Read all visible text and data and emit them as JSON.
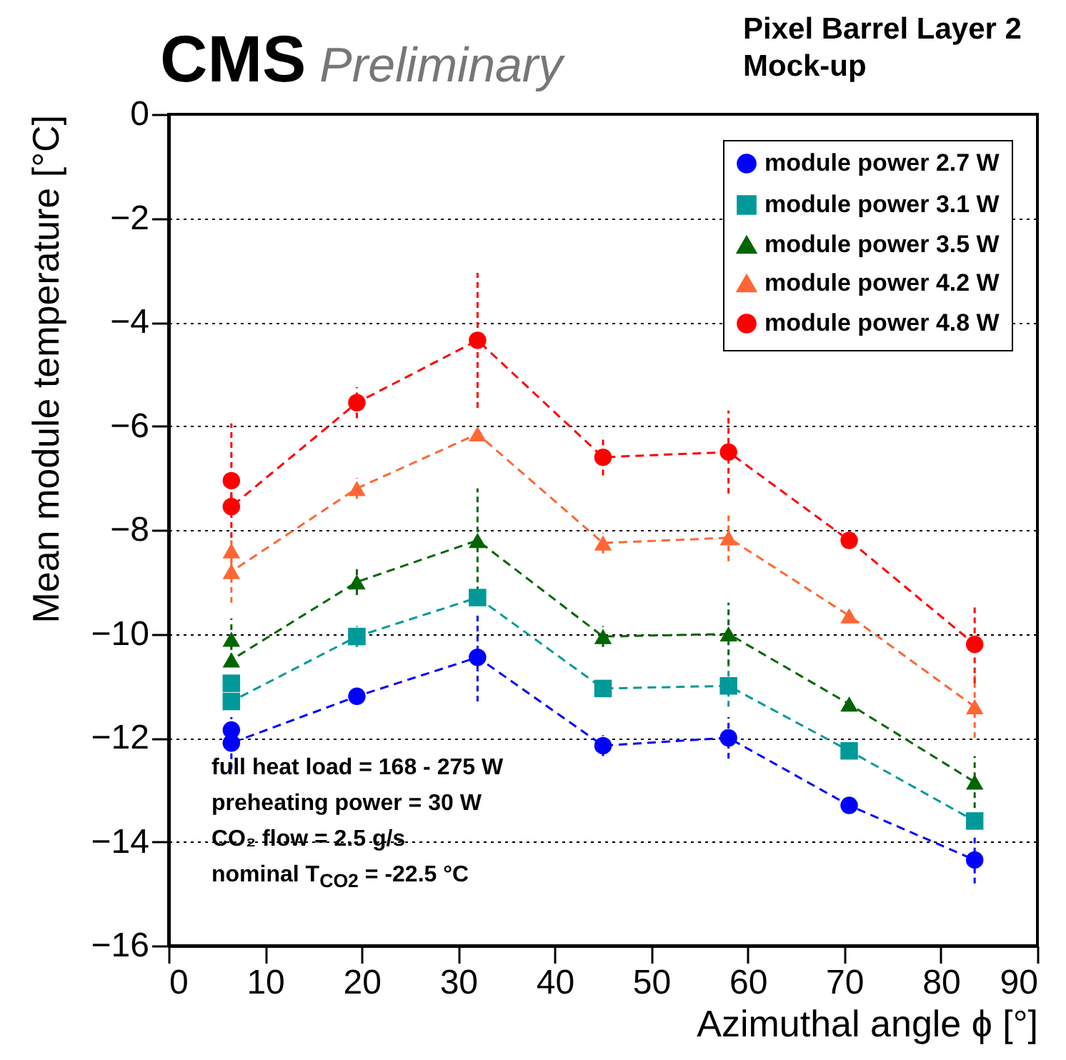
{
  "chart_data": {
    "type": "line",
    "title": "CMS Preliminary",
    "subtitle": "Pixel Barrel Layer 2 Mock-up",
    "xlabel": "Azimuthal angle ϕ [°]",
    "ylabel": "Mean module temperature [°C]",
    "xlim": [
      0,
      90
    ],
    "xticks": [
      0,
      10,
      20,
      30,
      40,
      50,
      60,
      70,
      80,
      90
    ],
    "ylim": [
      -16,
      0
    ],
    "yticks": [
      -16,
      -14,
      -12,
      -10,
      -8,
      -6,
      -4,
      -2,
      0
    ],
    "grid": "y",
    "legend": "top right",
    "line_style": "dashed",
    "annotations": [
      "full heat load = 168 - 275 W",
      "preheating power = 30 W",
      "CO₂ flow = 2.5 g/s",
      "nominal T$_{CO2}$ = -22.5  °C"
    ],
    "series": [
      {
        "name": "module power 2.7 W",
        "color": "#0000ff",
        "marker": "circle",
        "x": [
          6.5,
          6.5,
          19.5,
          32,
          45,
          58,
          70.5,
          83.5
        ],
        "values": [
          -11.85,
          -12.1,
          -11.2,
          -10.45,
          -12.15,
          -12.0,
          -13.3,
          -14.35
        ],
        "errors": [
          null,
          0.5,
          null,
          0.85,
          0.2,
          0.4,
          null,
          0.45
        ]
      },
      {
        "name": "module power 3.1 W",
        "color": "#009999",
        "marker": "square",
        "x": [
          6.5,
          6.5,
          19.5,
          32,
          45,
          58,
          70.5,
          83.5
        ],
        "values": [
          -10.95,
          -11.3,
          -10.05,
          -9.3,
          -11.05,
          -11.0,
          -12.25,
          -13.6
        ],
        "errors": [
          null,
          null,
          0.2,
          null,
          null,
          0.4,
          null,
          null
        ]
      },
      {
        "name": "module power 3.5 W",
        "color": "#006600",
        "marker": "triangle",
        "x": [
          6.5,
          6.5,
          19.5,
          32,
          45,
          58,
          70.5,
          83.5
        ],
        "values": [
          -10.1,
          -10.5,
          -9.0,
          -8.2,
          -10.05,
          -10.0,
          -11.35,
          -12.85
        ],
        "errors": [
          0.4,
          null,
          0.25,
          1.0,
          0.2,
          0.6,
          null,
          0.5
        ]
      },
      {
        "name": "module power 4.2 W",
        "color": "#ff6633",
        "marker": "triangle",
        "x": [
          6.5,
          6.5,
          19.5,
          32,
          45,
          58,
          70.5,
          83.5
        ],
        "values": [
          -8.4,
          -8.8,
          -7.2,
          -6.15,
          -8.25,
          -8.15,
          -9.65,
          -11.4
        ],
        "errors": [
          0.3,
          0.6,
          0.2,
          null,
          0.2,
          0.45,
          null,
          0.6
        ]
      },
      {
        "name": "module power 4.8 W",
        "color": "#ff0000",
        "marker": "circle",
        "x": [
          6.5,
          6.5,
          19.5,
          32,
          45,
          58,
          70.5,
          83.5
        ],
        "values": [
          -7.05,
          -7.55,
          -5.55,
          -4.35,
          -6.6,
          -6.5,
          -8.2,
          -10.2
        ],
        "errors": [
          1.1,
          null,
          0.3,
          1.3,
          0.35,
          0.8,
          null,
          0.75
        ]
      }
    ]
  }
}
